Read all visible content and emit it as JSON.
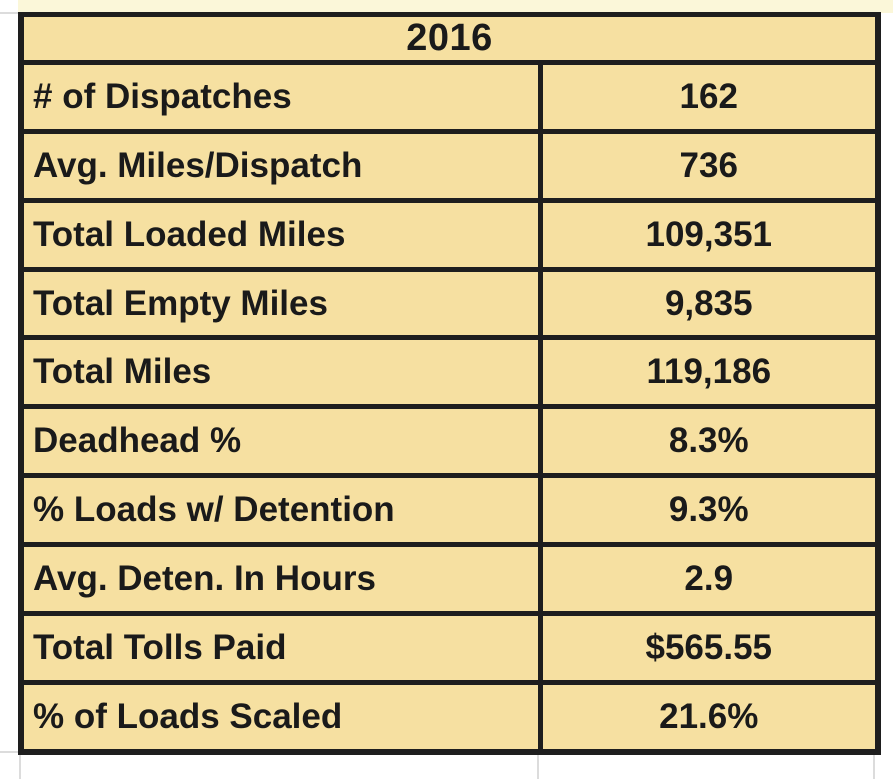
{
  "table": {
    "title": "2016",
    "rows": [
      {
        "label": "# of Dispatches",
        "value": "162"
      },
      {
        "label": "Avg. Miles/Dispatch",
        "value": "736"
      },
      {
        "label": "Total Loaded Miles",
        "value": "109,351"
      },
      {
        "label": "Total Empty Miles",
        "value": "9,835"
      },
      {
        "label": "Total Miles",
        "value": "119,186"
      },
      {
        "label": "Deadhead %",
        "value": "8.3%"
      },
      {
        "label": "% Loads w/ Detention",
        "value": "9.3%"
      },
      {
        "label": "Avg. Deten. In Hours",
        "value": "2.9"
      },
      {
        "label": "Total Tolls Paid",
        "value": "$565.55"
      },
      {
        "label": "% of Loads Scaled",
        "value": "21.6%"
      }
    ]
  },
  "colors": {
    "cell_fill": "#f6e0a1",
    "border": "#1e1e1e",
    "top_border": "#8b8b80",
    "text": "#1a1a1a",
    "strip_above": "#fbf7d9",
    "gridline": "#dcdcdc",
    "page_background": "#ffffff"
  }
}
